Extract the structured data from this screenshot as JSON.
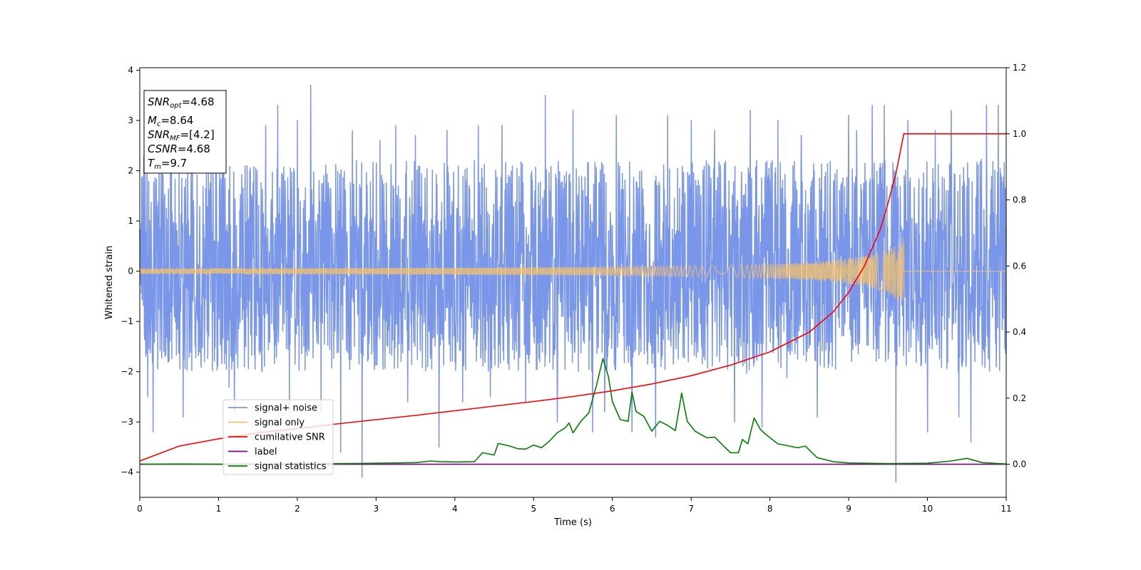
{
  "chart_data": {
    "type": "line",
    "xlabel": "Time (s)",
    "ylabel": "Whitened strain",
    "xlim": [
      0,
      11
    ],
    "ylim": [
      -4.5,
      4.05
    ],
    "y2lim": [
      -0.1,
      1.2
    ],
    "x_ticks": [
      "0",
      "1",
      "2",
      "3",
      "4",
      "5",
      "6",
      "7",
      "8",
      "9",
      "10",
      "11"
    ],
    "y_ticks": [
      "4",
      "3",
      "2",
      "1",
      "0",
      "−1",
      "−2",
      "−3",
      "−4"
    ],
    "y2_ticks": [
      "1.2",
      "1.0",
      "0.8",
      "0.6",
      "0.4",
      "0.2",
      "0.0"
    ],
    "grid": false,
    "legend_position": "lower-left",
    "annotation": {
      "lines": [
        {
          "name": "SNR",
          "sub": "opt",
          "value": "=4.68"
        },
        {
          "name": "M",
          "sub": "c",
          "value": "=8.64"
        },
        {
          "name": "SNR",
          "sub": "MF",
          "value": "=[4.2]"
        },
        {
          "name": "CSNR",
          "sub": "",
          "value": "=4.68"
        },
        {
          "name": "T",
          "sub": "m",
          "value": "=9.7"
        }
      ]
    },
    "series": [
      {
        "name": "signal+ noise",
        "color": "#7a96e8",
        "axis": "left",
        "noise_envelope": {
          "typical_min": -1.8,
          "typical_max": 2.0
        },
        "spikes": [
          [
            0.05,
            2.3
          ],
          [
            0.1,
            -2.5
          ],
          [
            0.17,
            -3.2
          ],
          [
            0.4,
            2.6
          ],
          [
            0.55,
            -2.9
          ],
          [
            1.05,
            3.2
          ],
          [
            1.2,
            -2.8
          ],
          [
            1.6,
            2.9
          ],
          [
            1.75,
            3.3
          ],
          [
            1.9,
            -2.9
          ],
          [
            2.0,
            3.0
          ],
          [
            2.17,
            3.7
          ],
          [
            2.3,
            -2.8
          ],
          [
            2.55,
            -3.6
          ],
          [
            2.7,
            2.8
          ],
          [
            2.82,
            -4.1
          ],
          [
            3.05,
            2.6
          ],
          [
            3.25,
            2.9
          ],
          [
            3.4,
            -2.6
          ],
          [
            3.5,
            2.7
          ],
          [
            3.8,
            -3.5
          ],
          [
            3.9,
            2.8
          ],
          [
            4.1,
            -2.6
          ],
          [
            4.3,
            2.9
          ],
          [
            4.45,
            -2.5
          ],
          [
            4.6,
            2.9
          ],
          [
            4.9,
            -2.6
          ],
          [
            5.15,
            3.5
          ],
          [
            5.3,
            -3.0
          ],
          [
            5.5,
            3.2
          ],
          [
            5.75,
            -3.2
          ],
          [
            5.9,
            -2.8
          ],
          [
            6.05,
            3.1
          ],
          [
            6.25,
            -3.2
          ],
          [
            6.55,
            -3.3
          ],
          [
            6.7,
            3.1
          ],
          [
            7.0,
            3.0
          ],
          [
            7.3,
            2.8
          ],
          [
            7.55,
            -3.0
          ],
          [
            7.75,
            3.2
          ],
          [
            7.9,
            -3.1
          ],
          [
            8.1,
            3.0
          ],
          [
            8.4,
            2.7
          ],
          [
            8.6,
            -2.9
          ],
          [
            9.0,
            3.1
          ],
          [
            9.1,
            2.8
          ],
          [
            9.3,
            3.3
          ],
          [
            9.45,
            3.3
          ],
          [
            9.6,
            -4.2
          ],
          [
            9.75,
            3.0
          ],
          [
            10.0,
            -3.2
          ],
          [
            10.1,
            2.8
          ],
          [
            10.3,
            3.2
          ],
          [
            10.4,
            -2.9
          ],
          [
            10.55,
            -3.4
          ],
          [
            10.75,
            3.3
          ],
          [
            10.9,
            3.3
          ]
        ]
      },
      {
        "name": "signal only",
        "color": "#f5c26b",
        "axis": "left",
        "chirp": {
          "start": 0,
          "end": 9.7,
          "amp_start": 0.04,
          "amp_end": 0.7
        }
      },
      {
        "name": "cumilative SNR",
        "color": "#ff0000",
        "axis": "right",
        "x": [
          0,
          0.5,
          1,
          1.5,
          2,
          2.5,
          3,
          3.5,
          4,
          4.5,
          5,
          5.5,
          6,
          6.5,
          7,
          7.5,
          8,
          8.5,
          8.8,
          9,
          9.2,
          9.4,
          9.5,
          9.6,
          9.65,
          9.7,
          11
        ],
        "values": [
          0.01,
          0.055,
          0.077,
          0.095,
          0.108,
          0.122,
          0.135,
          0.148,
          0.162,
          0.176,
          0.19,
          0.205,
          0.222,
          0.243,
          0.268,
          0.3,
          0.34,
          0.4,
          0.46,
          0.52,
          0.6,
          0.71,
          0.79,
          0.88,
          0.94,
          1.0,
          1.0
        ]
      },
      {
        "name": "label",
        "color": "#800080",
        "axis": "right",
        "x": [
          0,
          11
        ],
        "values": [
          0,
          0
        ]
      },
      {
        "name": "signal statistics",
        "color": "#008000",
        "axis": "right",
        "x": [
          0,
          0.5,
          1,
          2,
          3,
          3.5,
          3.7,
          3.8,
          4,
          4.25,
          4.35,
          4.5,
          4.55,
          4.7,
          4.8,
          4.9,
          5.0,
          5.1,
          5.2,
          5.3,
          5.4,
          5.45,
          5.5,
          5.6,
          5.7,
          5.8,
          5.88,
          5.95,
          6.0,
          6.1,
          6.2,
          6.25,
          6.3,
          6.4,
          6.5,
          6.6,
          6.7,
          6.8,
          6.88,
          6.95,
          7.05,
          7.2,
          7.3,
          7.4,
          7.5,
          7.6,
          7.65,
          7.72,
          7.8,
          7.88,
          7.95,
          8.1,
          8.25,
          8.35,
          8.45,
          8.6,
          8.8,
          9.0,
          9.5,
          10.0,
          10.3,
          10.5,
          10.7,
          11
        ],
        "values": [
          0,
          0.001,
          0.0,
          0.001,
          0.003,
          0.005,
          0.01,
          0.008,
          0.007,
          0.008,
          0.035,
          0.028,
          0.063,
          0.055,
          0.047,
          0.046,
          0.058,
          0.05,
          0.07,
          0.095,
          0.11,
          0.125,
          0.095,
          0.13,
          0.155,
          0.24,
          0.32,
          0.265,
          0.19,
          0.135,
          0.13,
          0.218,
          0.16,
          0.145,
          0.1,
          0.13,
          0.118,
          0.102,
          0.215,
          0.13,
          0.1,
          0.08,
          0.082,
          0.058,
          0.035,
          0.035,
          0.075,
          0.062,
          0.14,
          0.105,
          0.09,
          0.062,
          0.055,
          0.05,
          0.055,
          0.02,
          0.008,
          0.004,
          0.002,
          0.003,
          0.01,
          0.018,
          0.005,
          0.001
        ]
      }
    ]
  }
}
